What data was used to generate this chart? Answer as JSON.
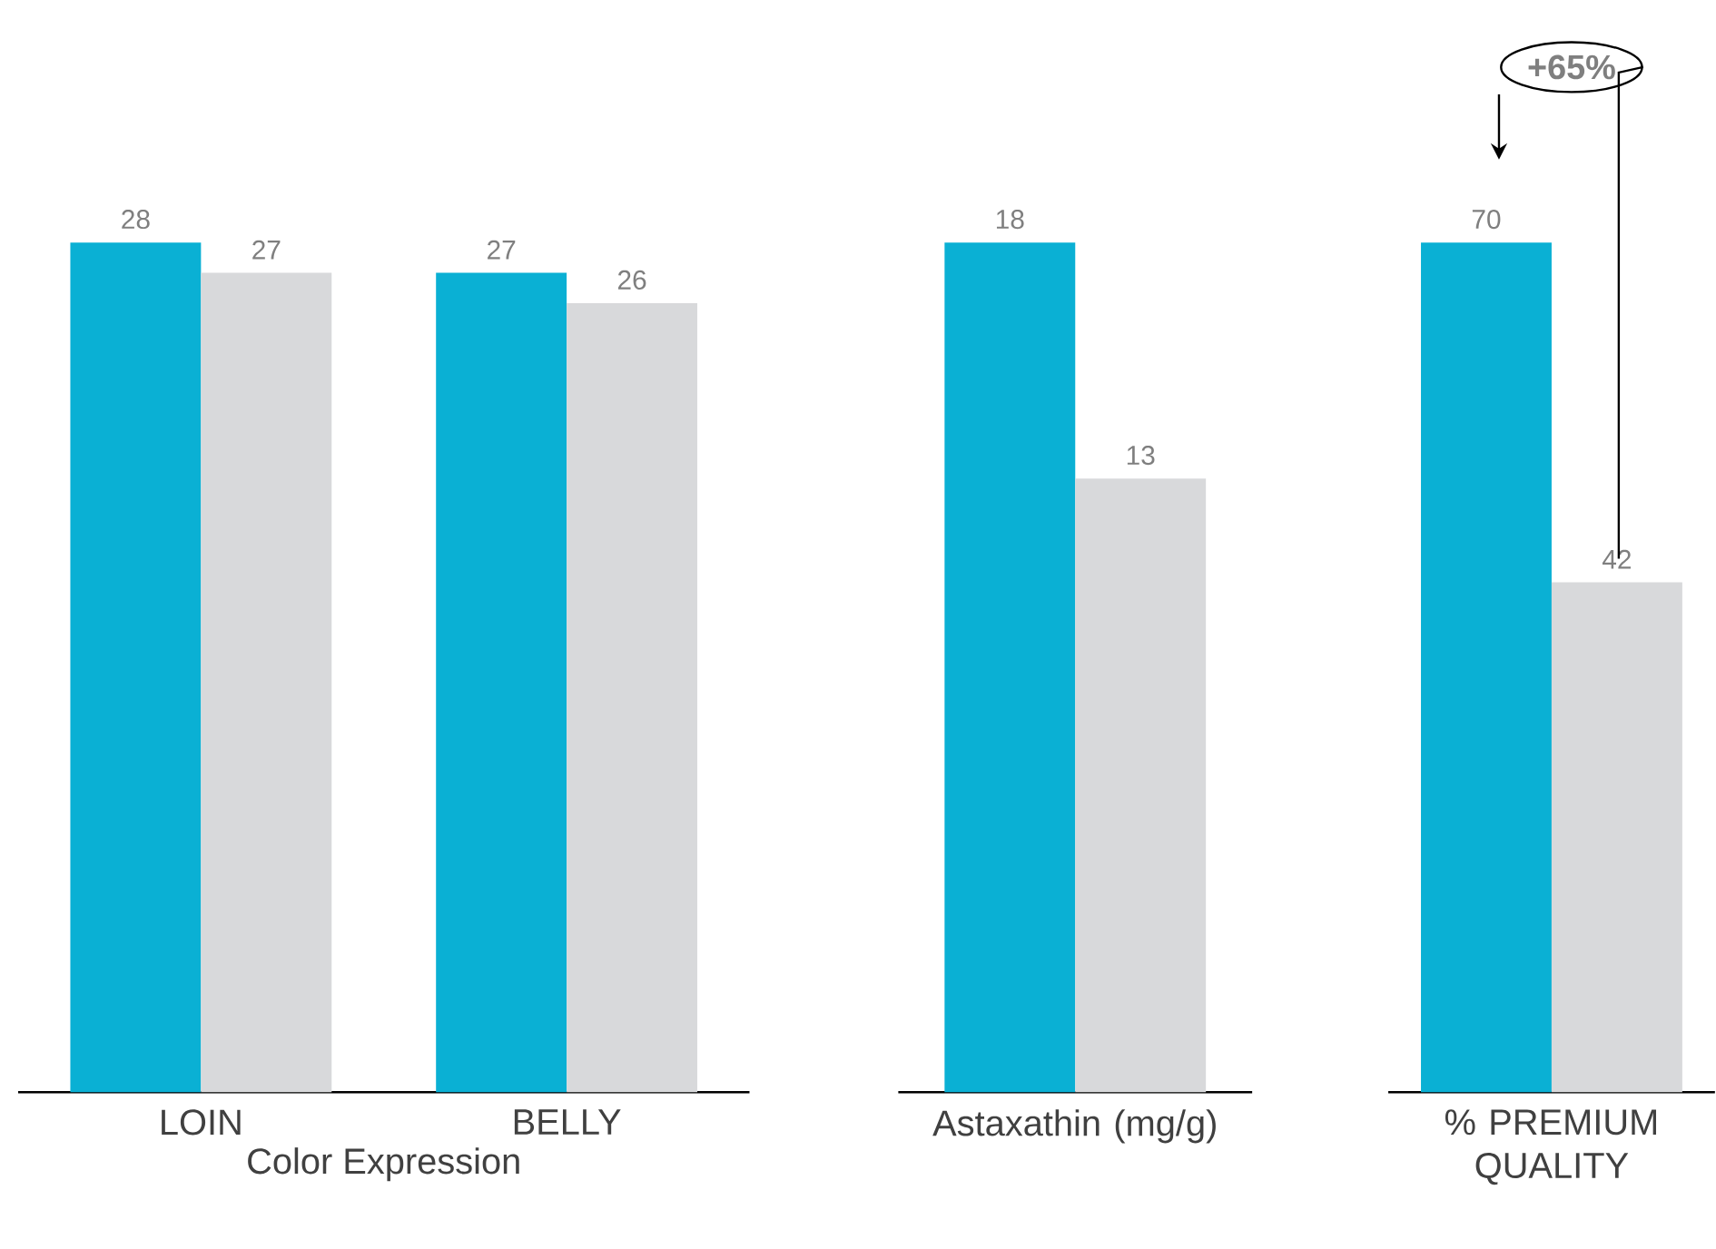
{
  "chart_data": [
    {
      "type": "bar",
      "categories": [
        "LOIN",
        "BELLY"
      ],
      "xlabel": "Color Expression",
      "series": [
        {
          "color": "#0ab0d4",
          "values": [
            28,
            27
          ]
        },
        {
          "color": "#d8d9db",
          "values": [
            27,
            26
          ]
        }
      ],
      "tick_labels": "x",
      "data_labels": true
    },
    {
      "type": "bar",
      "categories": [
        "Astaxathin (mg/g)"
      ],
      "series": [
        {
          "color": "#0ab0d4",
          "values": [
            18
          ]
        },
        {
          "color": "#d8d9db",
          "values": [
            13
          ]
        }
      ],
      "tick_labels": "x",
      "data_labels": true
    },
    {
      "type": "bar",
      "categories": [
        "% PREMIUM QUALITY"
      ],
      "series": [
        {
          "color": "#0ab0d4",
          "values": [
            70
          ]
        },
        {
          "color": "#d8d9db",
          "values": [
            42
          ]
        }
      ],
      "tick_labels": "x",
      "data_labels": true,
      "annotations": [
        "+65%"
      ]
    }
  ]
}
